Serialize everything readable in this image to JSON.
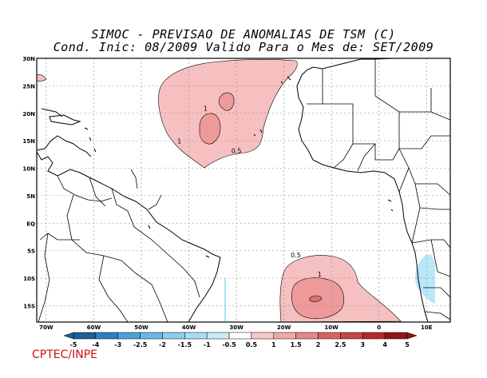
{
  "title": {
    "line1": "SIMOC - PREVISAO DE ANOMALIAS DE TSM (C)",
    "line2": "Cond. Inic: 08/2009   Valido Para o Mes de: SET/2009"
  },
  "credit": "CPTEC/INPE",
  "map": {
    "lon_range": [
      -72,
      15
    ],
    "lat_range": [
      -18,
      30
    ],
    "lat_ticks": [
      {
        "value": 30,
        "label": "30N"
      },
      {
        "value": 25,
        "label": "25N"
      },
      {
        "value": 20,
        "label": "20N"
      },
      {
        "value": 15,
        "label": "15N"
      },
      {
        "value": 10,
        "label": "10N"
      },
      {
        "value": 5,
        "label": "5N"
      },
      {
        "value": 0,
        "label": "EQ"
      },
      {
        "value": -5,
        "label": "5S"
      },
      {
        "value": -10,
        "label": "10S"
      },
      {
        "value": -15,
        "label": "15S"
      }
    ],
    "lon_ticks": [
      {
        "value": -70,
        "label": "70W"
      },
      {
        "value": -60,
        "label": "60W"
      },
      {
        "value": -50,
        "label": "50W"
      },
      {
        "value": -40,
        "label": "40W"
      },
      {
        "value": -30,
        "label": "30W"
      },
      {
        "value": -20,
        "label": "20W"
      },
      {
        "value": -10,
        "label": "10W"
      },
      {
        "value": 0,
        "label": "0"
      },
      {
        "value": 10,
        "label": "10E"
      }
    ],
    "contour_labels": [
      {
        "text": "1",
        "lon": -36.5,
        "lat": 20.5
      },
      {
        "text": "1",
        "lon": -42,
        "lat": 14.5
      },
      {
        "text": "0.5",
        "lon": -30,
        "lat": 12.8
      },
      {
        "text": "0.5",
        "lon": -17.5,
        "lat": -6.2
      },
      {
        "text": "1",
        "lon": -12.5,
        "lat": -9.7
      }
    ],
    "colors": {
      "positive_0_5": "#f6c0c0",
      "positive_1_0": "#ee9a9a",
      "positive_1_5": "#e06e6e",
      "negative_0_5": "#b8e8f8",
      "land_line": "#000000",
      "grid": "#8a8a8a"
    }
  },
  "colorbar": {
    "labels": [
      "-5",
      "-4",
      "-3",
      "-2.5",
      "-2",
      "-1.5",
      "-1",
      "-0.5",
      "0.5",
      "1",
      "1.5",
      "2",
      "2.5",
      "3",
      "4",
      "5"
    ],
    "colors": [
      "#1a5e9a",
      "#2c7fc0",
      "#4aa0da",
      "#6bb8e6",
      "#8ccdef",
      "#aadcf5",
      "#c8ebfa",
      "#ffffff",
      "#f8c8c8",
      "#f0a8a8",
      "#e88686",
      "#dc6262",
      "#cc4444",
      "#b42a2a",
      "#961414"
    ]
  }
}
